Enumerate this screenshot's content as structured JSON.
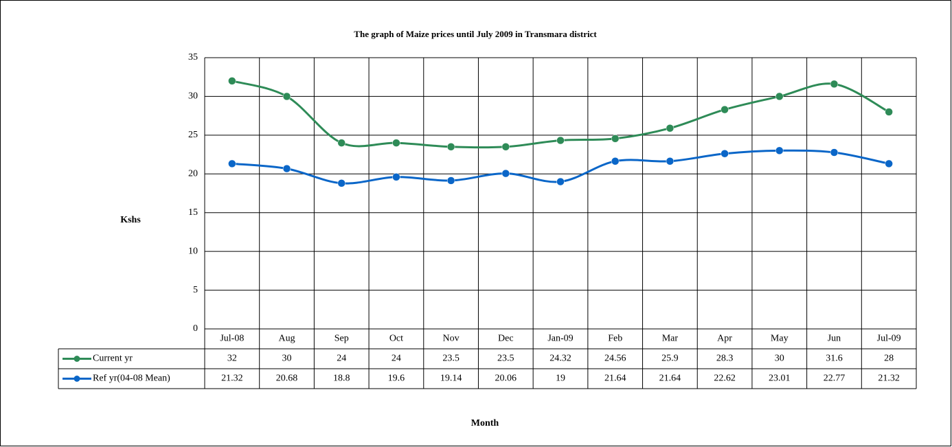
{
  "chart_data": {
    "type": "line",
    "title": "The graph of Maize prices until July 2009 in Transmara district",
    "y_label": "Kshs",
    "x_label": "Month",
    "categories": [
      "Jul-08",
      "Aug",
      "Sep",
      "Oct",
      "Nov",
      "Dec",
      "Jan-09",
      "Feb",
      "Mar",
      "Apr",
      "May",
      "Jun",
      "Jul-09"
    ],
    "series": [
      {
        "name": "Current yr",
        "color": "#2e8b57",
        "values": [
          32,
          30,
          24,
          24,
          23.5,
          23.5,
          24.32,
          24.56,
          25.9,
          28.3,
          30,
          31.6,
          28
        ]
      },
      {
        "name": "Ref yr(04-08 Mean)",
        "color": "#0a66c8",
        "values": [
          21.32,
          20.68,
          18.8,
          19.6,
          19.14,
          20.06,
          19,
          21.64,
          21.64,
          22.62,
          23.01,
          22.77,
          21.32
        ]
      }
    ],
    "ylim": [
      0,
      35
    ],
    "yticks": [
      0,
      5,
      10,
      15,
      20,
      25,
      30,
      35
    ],
    "grid": true,
    "smooth": true
  }
}
